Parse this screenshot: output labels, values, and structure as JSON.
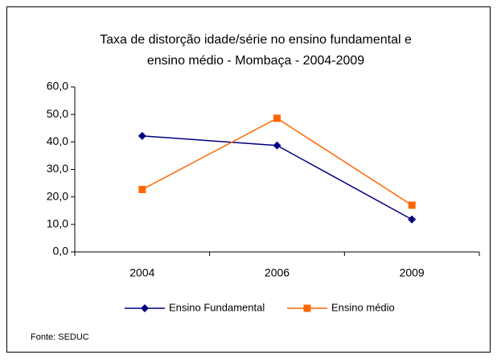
{
  "chart_data": {
    "type": "line",
    "title": [
      "Taxa de distorção idade/série no ensino fundamental e",
      "ensino médio - Mombaça -  2004-2009"
    ],
    "categories": [
      "2004",
      "2006",
      "2009"
    ],
    "series": [
      {
        "name": "Ensino Fundamental",
        "color": "#000080",
        "marker": "diamond",
        "values": [
          42.2,
          38.7,
          11.8
        ]
      },
      {
        "name": "Ensino médio",
        "color": "#FF6600",
        "marker": "square",
        "values": [
          22.7,
          48.6,
          17.0
        ]
      }
    ],
    "ylim": [
      0,
      60
    ],
    "yticks": [
      {
        "value": 0,
        "label": "0,0"
      },
      {
        "value": 10,
        "label": "10,0"
      },
      {
        "value": 20,
        "label": "20,0"
      },
      {
        "value": 30,
        "label": "30,0"
      },
      {
        "value": 40,
        "label": "40,0"
      },
      {
        "value": 50,
        "label": "50,0"
      },
      {
        "value": 60,
        "label": "60,0"
      }
    ],
    "grid": false,
    "legend": "bottom",
    "source": "Fonte: SEDUC"
  }
}
